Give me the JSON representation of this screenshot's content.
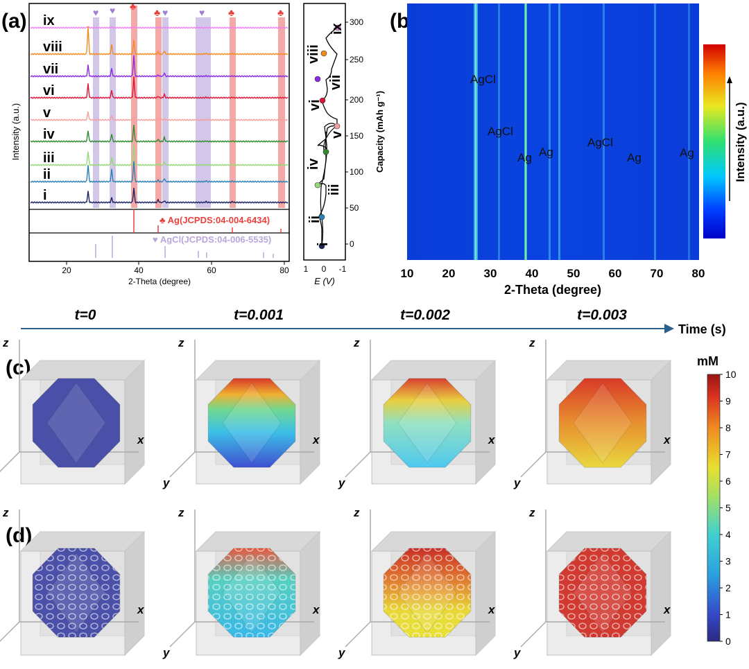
{
  "panel_labels": {
    "a": "(a)",
    "b": "(b)",
    "c": "(c)",
    "d": "(d)"
  },
  "colors": {
    "ag": "#e8413c",
    "agcl": "#b9a6dc",
    "ag_band": "#f08c8c",
    "agcl_band": "#c7b9e3",
    "time_arrow": "#2c5f8a"
  },
  "panel_a": {
    "ylabel": "Intensity (a.u.)",
    "xlabel": "2-Theta (degree)",
    "xticks": [
      "20",
      "40",
      "60",
      "80"
    ],
    "curves": [
      {
        "label": "ix",
        "color": "#ee82ee"
      },
      {
        "label": "viii",
        "color": "#f28c1e"
      },
      {
        "label": "vii",
        "color": "#8a2be2"
      },
      {
        "label": "vi",
        "color": "#dc143c"
      },
      {
        "label": "v",
        "color": "#f4a0a0"
      },
      {
        "label": "iv",
        "color": "#2e8b2e"
      },
      {
        "label": "iii",
        "color": "#98d878"
      },
      {
        "label": "ii",
        "color": "#2a82b4"
      },
      {
        "label": "i",
        "color": "#1c2260"
      }
    ],
    "ag_ref": "♣ Ag(JCPDS:04-004-6434)",
    "agcl_ref": "♥ AgCl(JCPDS:04-006-5535)",
    "markers": {
      "club": "♣",
      "heart": "♥"
    }
  },
  "panel_a_right": {
    "ylabel": "Capacity (mAh g⁻¹)",
    "yticks": [
      "0",
      "50",
      "100",
      "150",
      "200",
      "250",
      "300"
    ],
    "xticks": [
      "1",
      "0",
      "-1"
    ],
    "xlabel": "E (V)",
    "stages": [
      "i",
      "ii",
      "iii",
      "iv",
      "v",
      "vi",
      "vii",
      "viii",
      "ix"
    ]
  },
  "panel_b": {
    "xlabel": "2-Theta (degree)",
    "xticks": [
      "10",
      "20",
      "30",
      "40",
      "50",
      "60",
      "70",
      "80"
    ],
    "colorbar_label": "Intensity (a.u.)",
    "annotations": [
      "AgCl",
      "AgCl",
      "Ag",
      "Ag",
      "AgCl",
      "Ag",
      "Ag"
    ]
  },
  "timeline": {
    "label": "Time (s)",
    "steps": [
      "t=0",
      "t=0.001",
      "t=0.002",
      "t=0.003"
    ]
  },
  "axes": {
    "x": "x",
    "y": "y",
    "z": "z"
  },
  "colorbar_cd": {
    "unit": "mM",
    "ticks": [
      "0",
      "1",
      "2",
      "3",
      "4",
      "5",
      "6",
      "7",
      "8",
      "9",
      "10"
    ]
  }
}
